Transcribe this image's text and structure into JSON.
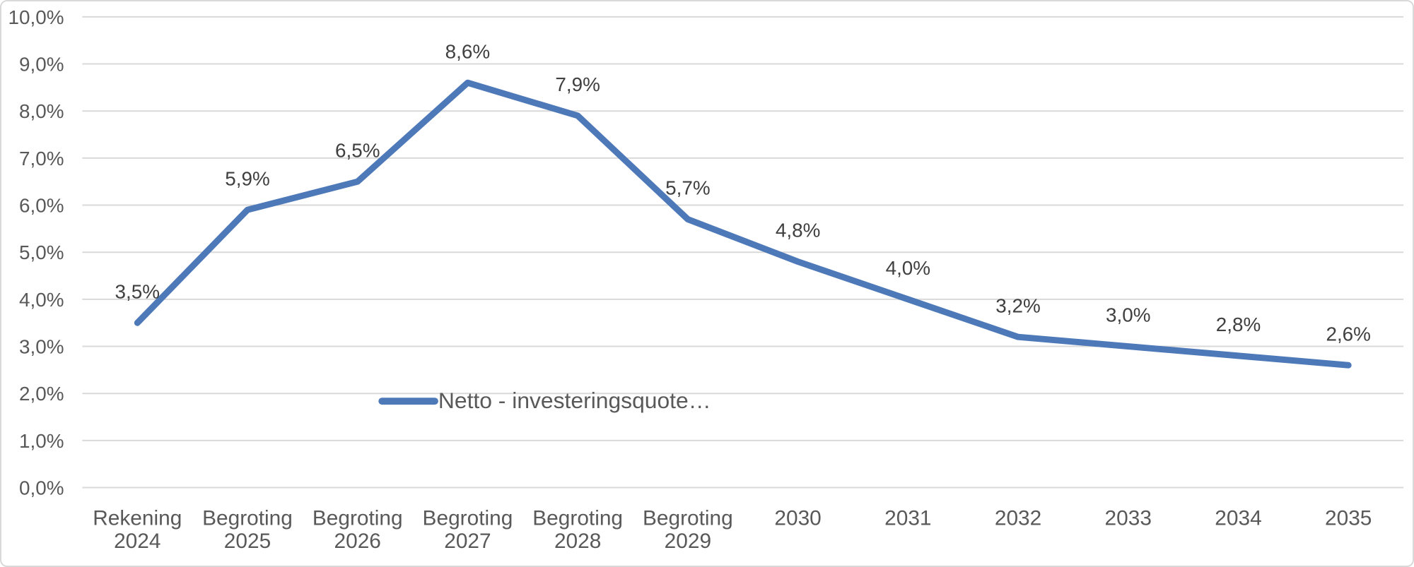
{
  "legend": {
    "label": "Netto - investeringsquote…"
  },
  "chart_data": {
    "type": "line",
    "title": "",
    "categories": [
      "Rekening 2024",
      "Begroting 2025",
      "Begroting 2026",
      "Begroting 2027",
      "Begroting 2028",
      "Begroting 2029",
      "2030",
      "2031",
      "2032",
      "2033",
      "2034",
      "2035"
    ],
    "category_lines": [
      [
        "Rekening",
        "2024"
      ],
      [
        "Begroting",
        "2025"
      ],
      [
        "Begroting",
        "2026"
      ],
      [
        "Begroting",
        "2027"
      ],
      [
        "Begroting",
        "2028"
      ],
      [
        "Begroting",
        "2029"
      ],
      [
        "2030"
      ],
      [
        "2031"
      ],
      [
        "2032"
      ],
      [
        "2033"
      ],
      [
        "2034"
      ],
      [
        "2035"
      ]
    ],
    "series": [
      {
        "name": "Netto - investeringsquote…",
        "values": [
          3.5,
          5.9,
          6.5,
          8.6,
          7.9,
          5.7,
          4.8,
          4.0,
          3.2,
          3.0,
          2.8,
          2.6
        ],
        "data_labels": [
          "3,5%",
          "5,9%",
          "6,5%",
          "8,6%",
          "7,9%",
          "5,7%",
          "4,8%",
          "4,0%",
          "3,2%",
          "3,0%",
          "2,8%",
          "2,6%"
        ]
      }
    ],
    "y_axis": {
      "min": 0,
      "max": 10,
      "step": 1,
      "tick_labels": [
        "0,0%",
        "1,0%",
        "2,0%",
        "3,0%",
        "4,0%",
        "5,0%",
        "6,0%",
        "7,0%",
        "8,0%",
        "9,0%",
        "10,0%"
      ]
    },
    "x_axis": {
      "label": ""
    },
    "grid": true,
    "legend_position": "inside-bottom-center",
    "colors": {
      "line": "#4E79B8",
      "axis_text": "#595959",
      "data_label_text": "#404040",
      "gridline": "#D9D9D9",
      "chart_border": "#D9D9D9",
      "background": "#FFFFFF"
    }
  }
}
